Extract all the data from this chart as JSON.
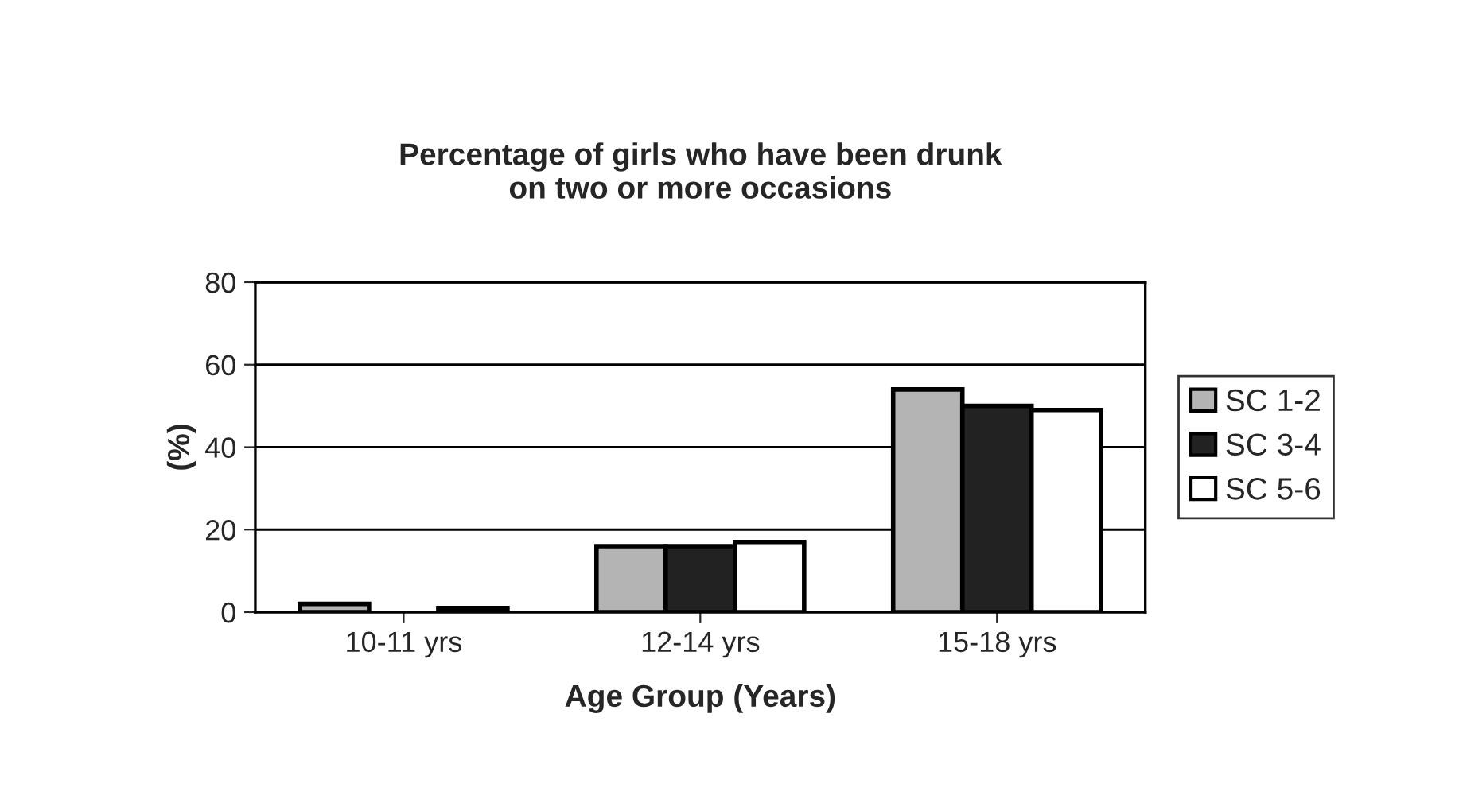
{
  "chart_data": {
    "type": "bar",
    "title": "Percentage of girls who have been drunk\non two or more occasions",
    "xlabel": "Age Group (Years)",
    "ylabel": "(%)",
    "categories": [
      "10-11 yrs",
      "12-14 yrs",
      "15-18 yrs"
    ],
    "series": [
      {
        "name": "SC 1-2",
        "color": "#b4b4b4",
        "values": [
          2,
          16,
          54
        ]
      },
      {
        "name": "SC 3-4",
        "color": "#222222",
        "values": [
          0,
          16,
          50
        ]
      },
      {
        "name": "SC 5-6",
        "color": "#ffffff",
        "values": [
          1,
          17,
          49
        ]
      }
    ],
    "ylim": [
      0,
      80
    ],
    "yticks": [
      0,
      20,
      40,
      60,
      80
    ],
    "grid": "y",
    "legend": "right"
  }
}
